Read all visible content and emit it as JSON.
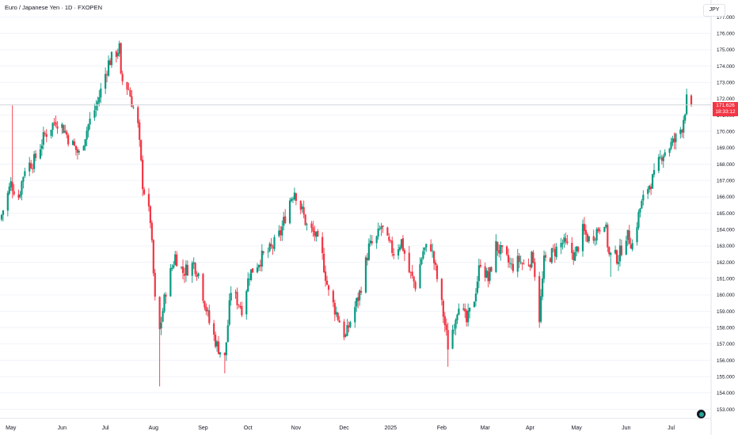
{
  "header": {
    "symbol_title": "Euro / Japanese Yen · 1D · FXOPEN",
    "currency": "JPY"
  },
  "price_tag": {
    "price": "171.626",
    "countdown": "18:33:12"
  },
  "colors": {
    "up": "#089981",
    "down": "#f23645",
    "grid": "#f0f3fa",
    "axis_text": "#131722",
    "last_price_line": "#d1d4dc"
  },
  "icons": {
    "logo": "tradingview-logo-icon"
  },
  "chart_data": {
    "type": "candlestick",
    "title": "Euro / Japanese Yen · 1D · FXOPEN",
    "ylabel": "JPY",
    "ylim": [
      152.5,
      177.6
    ],
    "y_ticks": [
      "153.000",
      "154.000",
      "155.000",
      "156.000",
      "157.000",
      "158.000",
      "159.000",
      "160.000",
      "161.000",
      "162.000",
      "163.000",
      "164.000",
      "165.000",
      "166.000",
      "167.000",
      "168.000",
      "169.000",
      "170.000",
      "171.000",
      "172.000",
      "173.000",
      "174.000",
      "175.000",
      "176.000",
      "177.000"
    ],
    "x_ticks": [
      "May",
      "Jun",
      "Jul",
      "Aug",
      "Sep",
      "Oct",
      "Nov",
      "Dec",
      "2025",
      "Feb",
      "Mar",
      "Apr",
      "May",
      "Jun",
      "Jul"
    ],
    "last_price": 171.626,
    "anchors": [
      {
        "date": "2024-04-25",
        "close": 164.9
      },
      {
        "date": "2024-05-01",
        "close": 166.8
      },
      {
        "date": "2024-05-06",
        "close": 166.0
      },
      {
        "date": "2024-05-10",
        "close": 167.8
      },
      {
        "date": "2024-05-16",
        "close": 168.2
      },
      {
        "date": "2024-05-23",
        "close": 169.8
      },
      {
        "date": "2024-05-30",
        "close": 170.7
      },
      {
        "date": "2024-06-04",
        "close": 170.2
      },
      {
        "date": "2024-06-07",
        "close": 169.6
      },
      {
        "date": "2024-06-14",
        "close": 168.6
      },
      {
        "date": "2024-06-20",
        "close": 170.4
      },
      {
        "date": "2024-06-26",
        "close": 171.8
      },
      {
        "date": "2024-07-03",
        "close": 174.2
      },
      {
        "date": "2024-07-10",
        "close": 175.1
      },
      {
        "date": "2024-07-11",
        "close": 173.2
      },
      {
        "date": "2024-07-16",
        "close": 172.6
      },
      {
        "date": "2024-07-22",
        "close": 170.3
      },
      {
        "date": "2024-07-25",
        "close": 166.8
      },
      {
        "date": "2024-07-30",
        "close": 164.6
      },
      {
        "date": "2024-08-02",
        "close": 159.6
      },
      {
        "date": "2024-08-05",
        "close": 157.8
      },
      {
        "date": "2024-08-09",
        "close": 160.3
      },
      {
        "date": "2024-08-15",
        "close": 162.4
      },
      {
        "date": "2024-08-20",
        "close": 161.4
      },
      {
        "date": "2024-08-27",
        "close": 161.9
      },
      {
        "date": "2024-08-30",
        "close": 161.3
      },
      {
        "date": "2024-09-06",
        "close": 158.3
      },
      {
        "date": "2024-09-11",
        "close": 156.9
      },
      {
        "date": "2024-09-16",
        "close": 156.1
      },
      {
        "date": "2024-09-20",
        "close": 160.3
      },
      {
        "date": "2024-09-27",
        "close": 159.2
      },
      {
        "date": "2024-10-02",
        "close": 161.3
      },
      {
        "date": "2024-10-10",
        "close": 162.3
      },
      {
        "date": "2024-10-16",
        "close": 162.8
      },
      {
        "date": "2024-10-22",
        "close": 163.8
      },
      {
        "date": "2024-10-28",
        "close": 165.8
      },
      {
        "date": "2024-10-31",
        "close": 166.4
      },
      {
        "date": "2024-11-05",
        "close": 165.1
      },
      {
        "date": "2024-11-08",
        "close": 164.2
      },
      {
        "date": "2024-11-13",
        "close": 163.7
      },
      {
        "date": "2024-11-18",
        "close": 162.3
      },
      {
        "date": "2024-11-22",
        "close": 160.1
      },
      {
        "date": "2024-11-27",
        "close": 158.9
      },
      {
        "date": "2024-12-03",
        "close": 157.4
      },
      {
        "date": "2024-12-06",
        "close": 158.4
      },
      {
        "date": "2024-12-12",
        "close": 160.1
      },
      {
        "date": "2024-12-18",
        "close": 162.9
      },
      {
        "date": "2024-12-23",
        "close": 163.4
      },
      {
        "date": "2024-12-26",
        "close": 164.2
      },
      {
        "date": "2024-12-30",
        "close": 163.2
      },
      {
        "date": "2025-01-03",
        "close": 162.6
      },
      {
        "date": "2025-01-08",
        "close": 163.3
      },
      {
        "date": "2025-01-13",
        "close": 161.4
      },
      {
        "date": "2025-01-17",
        "close": 160.6
      },
      {
        "date": "2025-01-22",
        "close": 162.7
      },
      {
        "date": "2025-01-27",
        "close": 163.0
      },
      {
        "date": "2025-01-31",
        "close": 161.0
      },
      {
        "date": "2025-02-04",
        "close": 158.8
      },
      {
        "date": "2025-02-07",
        "close": 156.9
      },
      {
        "date": "2025-02-10",
        "close": 157.9
      },
      {
        "date": "2025-02-14",
        "close": 159.6
      },
      {
        "date": "2025-02-19",
        "close": 158.3
      },
      {
        "date": "2025-02-24",
        "close": 159.8
      },
      {
        "date": "2025-02-28",
        "close": 162.1
      },
      {
        "date": "2025-03-05",
        "close": 160.9
      },
      {
        "date": "2025-03-10",
        "close": 163.0
      },
      {
        "date": "2025-03-14",
        "close": 162.5
      },
      {
        "date": "2025-03-20",
        "close": 161.7
      },
      {
        "date": "2025-03-25",
        "close": 162.1
      },
      {
        "date": "2025-03-28",
        "close": 161.8
      },
      {
        "date": "2025-04-03",
        "close": 162.3
      },
      {
        "date": "2025-04-07",
        "close": 158.6
      },
      {
        "date": "2025-04-10",
        "close": 162.0
      },
      {
        "date": "2025-04-16",
        "close": 162.6
      },
      {
        "date": "2025-04-22",
        "close": 163.2
      },
      {
        "date": "2025-04-25",
        "close": 162.9
      },
      {
        "date": "2025-04-30",
        "close": 162.4
      },
      {
        "date": "2025-05-05",
        "close": 163.9
      },
      {
        "date": "2025-05-09",
        "close": 163.4
      },
      {
        "date": "2025-05-13",
        "close": 163.8
      },
      {
        "date": "2025-05-19",
        "close": 164.6
      },
      {
        "date": "2025-05-22",
        "close": 162.4
      },
      {
        "date": "2025-05-28",
        "close": 162.3
      },
      {
        "date": "2025-06-02",
        "close": 163.7
      },
      {
        "date": "2025-06-06",
        "close": 163.1
      },
      {
        "date": "2025-06-11",
        "close": 165.3
      },
      {
        "date": "2025-06-16",
        "close": 166.6
      },
      {
        "date": "2025-06-20",
        "close": 167.2
      },
      {
        "date": "2025-06-25",
        "close": 168.6
      },
      {
        "date": "2025-06-30",
        "close": 169.1
      },
      {
        "date": "2025-07-03",
        "close": 169.4
      },
      {
        "date": "2025-07-08",
        "close": 170.3
      },
      {
        "date": "2025-07-11",
        "close": 171.9
      },
      {
        "date": "2025-07-14",
        "close": 171.626
      }
    ]
  }
}
